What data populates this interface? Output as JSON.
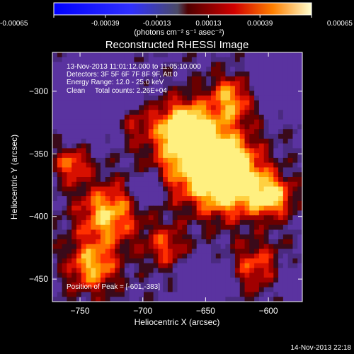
{
  "chart_data": {
    "type": "heatmap",
    "title": "Reconstructed RHESSI Image",
    "xlabel": "Heliocentric X (arcsec)",
    "ylabel": "Heliocentric Y (arcsec)",
    "xlim": [
      -772,
      -573
    ],
    "ylim": [
      -468,
      -269
    ],
    "xticks": [
      -750,
      -700,
      -650,
      -600
    ],
    "yticks": [
      -300,
      -350,
      -400,
      -450
    ],
    "colorbar": {
      "ticks": [
        "-0.00065",
        "-0.00039",
        "-0.00013",
        "0.00013",
        "0.00039",
        "0.00065"
      ],
      "range": [
        -0.00065,
        0.00065
      ],
      "unit_label": "(photons cm⁻² s⁻¹ asec⁻²)"
    },
    "annotations": [
      "13-Nov-2013 11:01:12.000 to 11:05:10.000",
      "Detectors: 3F 5F 6F 7F 8F 9F, Att 0",
      "Energy Range: 12.0 - 25.0 keV",
      "Clean     Total counts: 2.26E+04"
    ],
    "peak_label": "Position of Peak = [-601,-383]",
    "peak_position": [
      -601,
      -383
    ],
    "timestamp": "14-Nov-2013 22:18",
    "grid": false
  }
}
